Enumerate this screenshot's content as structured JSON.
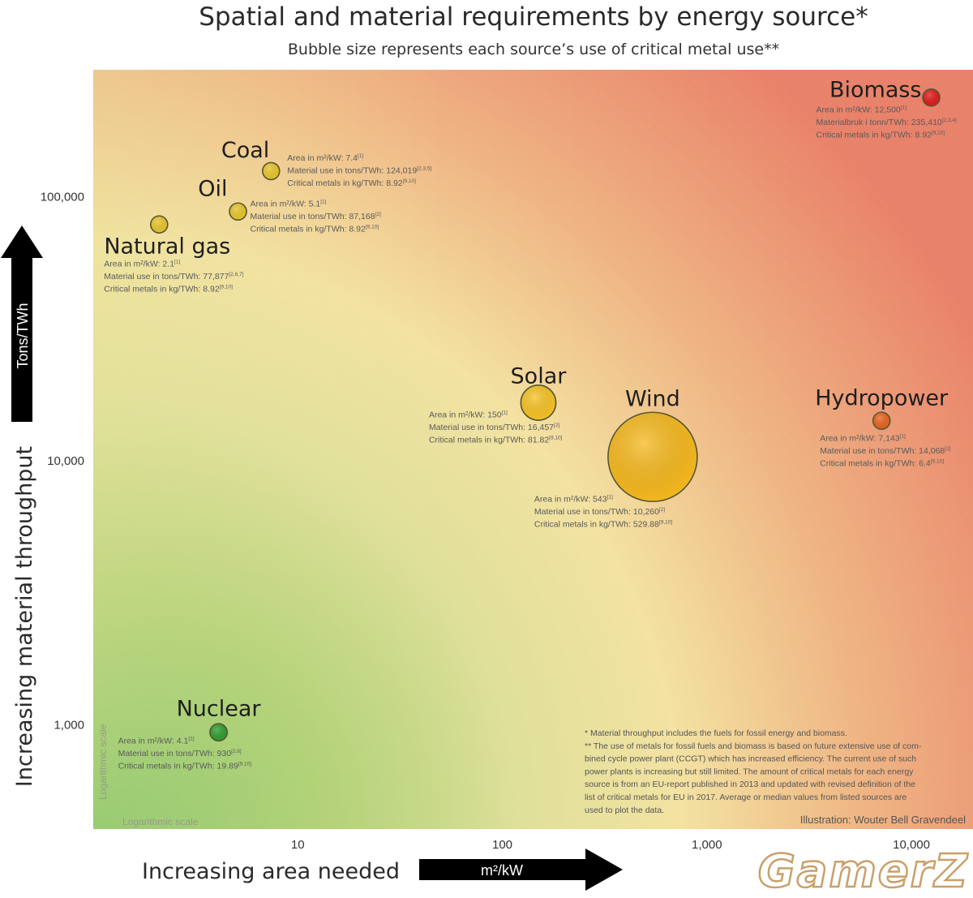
{
  "title": "Spatial and material requirements by energy source*",
  "subtitle": "Bubble size represents each source’s use of critical metal use**",
  "watermark": "GamerZ",
  "chart_data": {
    "type": "scatter",
    "x_scale": "log",
    "y_scale": "log",
    "xlim": [
      1,
      20000
    ],
    "ylim": [
      400,
      300000
    ],
    "x_ticks": [
      {
        "value": 10,
        "label": "10"
      },
      {
        "value": 100,
        "label": "100"
      },
      {
        "value": 1000,
        "label": "1,000"
      },
      {
        "value": 10000,
        "label": "10,000"
      }
    ],
    "y_ticks": [
      {
        "value": 1000,
        "label": "1,000"
      },
      {
        "value": 10000,
        "label": "10,000"
      },
      {
        "value": 100000,
        "label": "100,000"
      }
    ],
    "xlabel": "Increasing area needed",
    "xunit": "m²/kW",
    "ylabel": "Increasing material throughput",
    "yunit": "Tons/TWh",
    "x_scale_note": "Logarithmic scale",
    "y_scale_note": "Logarithmic scale",
    "bubble_size_metric": "Critical metals in kg/TWh",
    "points": [
      {
        "name": "Biomass",
        "x": 12500,
        "y": 235410,
        "size": 8.92,
        "color": "#e01b1b",
        "info": [
          {
            "text": "Area in m²/kW: 12,500",
            "ref": "[1]"
          },
          {
            "text": "Materialbruk i tonn/TWh: 235,410",
            "ref": "[2,3,4]"
          },
          {
            "text": "Critical metals in kg/TWh: 8.92",
            "ref": "[9,10]"
          }
        ]
      },
      {
        "name": "Coal",
        "x": 7.4,
        "y": 124019,
        "size": 8.92,
        "color": "#e8c52a",
        "info": [
          {
            "text": "Area in m²/kW: 7.4",
            "ref": "[1]"
          },
          {
            "text": "Material use in tons/TWh: 124,019",
            "ref": "[2,3,5]"
          },
          {
            "text": "Critical metals in kg/TWh: 8.92",
            "ref": "[9,10]"
          }
        ]
      },
      {
        "name": "Oil",
        "x": 5.1,
        "y": 87168,
        "size": 8.92,
        "color": "#e8c52a",
        "info": [
          {
            "text": "Area in m²/kW: 5.1",
            "ref": "[1]"
          },
          {
            "text": "Material use in tons/TWh: 87,168",
            "ref": "[2]"
          },
          {
            "text": "Critical metals in kg/TWh: 8.92",
            "ref": "[9,10]"
          }
        ]
      },
      {
        "name": "Natural gas",
        "x": 2.1,
        "y": 77877,
        "size": 8.92,
        "color": "#e8c52a",
        "info": [
          {
            "text": "Area in m²/kW: 2.1",
            "ref": "[1]"
          },
          {
            "text": "Material use in tons/TWh: 77,877",
            "ref": "[2,6,7]"
          },
          {
            "text": "Critical metals in kg/TWh: 8.92",
            "ref": "[9,10]"
          }
        ]
      },
      {
        "name": "Solar",
        "x": 150,
        "y": 16457,
        "size": 81.82,
        "color": "#f5c224",
        "info": [
          {
            "text": "Area in m²/kW: 150",
            "ref": "[1]"
          },
          {
            "text": "Material use in tons/TWh: 16,457",
            "ref": "[2]"
          },
          {
            "text": "Critical metals in kg/TWh: 81.82",
            "ref": "[9,10]"
          }
        ]
      },
      {
        "name": "Wind",
        "x": 543,
        "y": 10260,
        "size": 529.88,
        "color": "#f5b81e",
        "info": [
          {
            "text": "Area in m²/kW: 543",
            "ref": "[1]"
          },
          {
            "text": "Material use in tons/TWh: 10,260",
            "ref": "[2]"
          },
          {
            "text": "Critical metals in kg/TWh: 529.88",
            "ref": "[9,10]"
          }
        ]
      },
      {
        "name": "Hydropower",
        "x": 7143,
        "y": 14068,
        "size": 6.4,
        "color": "#e8641e",
        "info": [
          {
            "text": "Area in m²/kW: 7,143",
            "ref": "[1]"
          },
          {
            "text": "Material use in tons/TWh: 14,068",
            "ref": "[2]"
          },
          {
            "text": "Critical metals in kg/TWh: 6.4",
            "ref": "[9,10]"
          }
        ]
      },
      {
        "name": "Nuclear",
        "x": 4.1,
        "y": 930,
        "size": 19.89,
        "color": "#2e9e2e",
        "info": [
          {
            "text": "Area in m²/kW: 4.1",
            "ref": "[1]"
          },
          {
            "text": "Material use in tons/TWh: 930",
            "ref": "[2,8]"
          },
          {
            "text": "Critical metals in kg/TWh: 19.89",
            "ref": "[9,10]"
          }
        ]
      }
    ],
    "footnotes": [
      "* Material throughput includes the fuels for fossil energy and biomass.",
      "** The use of metals for fossil fuels and biomass is based on future extensive use of com-",
      "bined cycle power plant (CCGT) which has increased efficiency. The current use of such",
      "power plants is increasing but still limited. The amount of critical metals for each energy",
      "source is from an EU-report published in 2013 and updated with revised definition of the",
      "list of critical metals for EU in 2017. Average or median values from listed sources are",
      "used to plot the data."
    ],
    "credit": "Illustration: Wouter Bell Gravendeel"
  }
}
